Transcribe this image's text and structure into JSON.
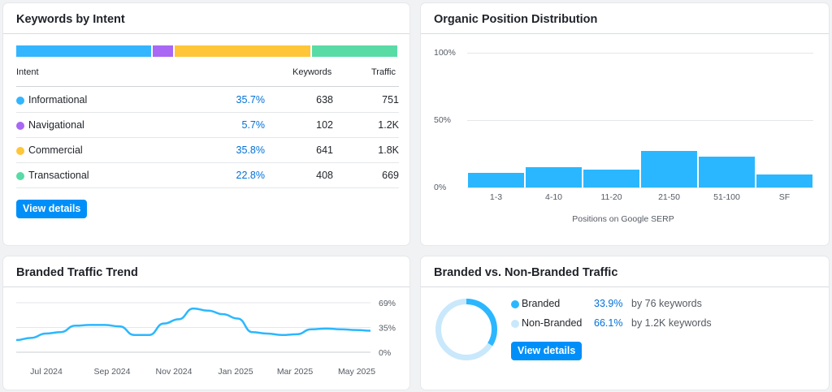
{
  "intent": {
    "title": "Keywords by Intent",
    "headers": {
      "intent": "Intent",
      "keywords": "Keywords",
      "traffic": "Traffic"
    },
    "rows": [
      {
        "label": "Informational",
        "pct": "35.7%",
        "keywords": "638",
        "traffic": "751",
        "color": "#33b5ff"
      },
      {
        "label": "Navigational",
        "pct": "5.7%",
        "keywords": "102",
        "traffic": "1.2K",
        "color": "#a868f4"
      },
      {
        "label": "Commercial",
        "pct": "35.8%",
        "keywords": "641",
        "traffic": "1.8K",
        "color": "#ffc639"
      },
      {
        "label": "Transactional",
        "pct": "22.8%",
        "keywords": "408",
        "traffic": "669",
        "color": "#59dba6"
      }
    ],
    "bar_shares": [
      35.7,
      5.7,
      35.8,
      22.8
    ],
    "view_details": "View details"
  },
  "positions": {
    "title": "Organic Position Distribution",
    "chart_data": {
      "type": "bar",
      "categories": [
        "1-3",
        "4-10",
        "11-20",
        "21-50",
        "51-100",
        "SF"
      ],
      "values": [
        11,
        15,
        13,
        27,
        23,
        9.5
      ],
      "yticks": [
        "100%",
        "50%",
        "0%"
      ],
      "ylim": [
        0,
        100
      ],
      "xlabel": "Positions on Google SERP",
      "color": "#2bb7ff"
    }
  },
  "trend": {
    "title": "Branded Traffic Trend",
    "chart_data": {
      "type": "line",
      "xticks": [
        "Jul 2024",
        "Sep 2024",
        "Nov 2024",
        "Jan 2025",
        "Mar 2025",
        "May 2025"
      ],
      "yticks": [
        "69%",
        "35%",
        "0%"
      ],
      "ylim": [
        0,
        69
      ],
      "values": [
        17,
        20,
        26,
        28,
        37,
        38,
        38,
        36,
        24,
        24,
        40,
        46,
        61,
        58,
        53,
        47,
        28,
        26,
        24,
        25,
        32,
        33,
        32,
        31,
        30
      ],
      "color": "#2bb7ff"
    }
  },
  "branded": {
    "title": "Branded vs. Non-Branded Traffic",
    "items": [
      {
        "label": "Branded",
        "pct": "33.9%",
        "desc": "by 76 keywords",
        "color": "#2bb7ff"
      },
      {
        "label": "Non-Branded",
        "pct": "66.1%",
        "desc": "by 1.2K keywords",
        "color": "#c9e8fb"
      }
    ],
    "shares": [
      33.9,
      66.1
    ],
    "view_details": "View details"
  }
}
